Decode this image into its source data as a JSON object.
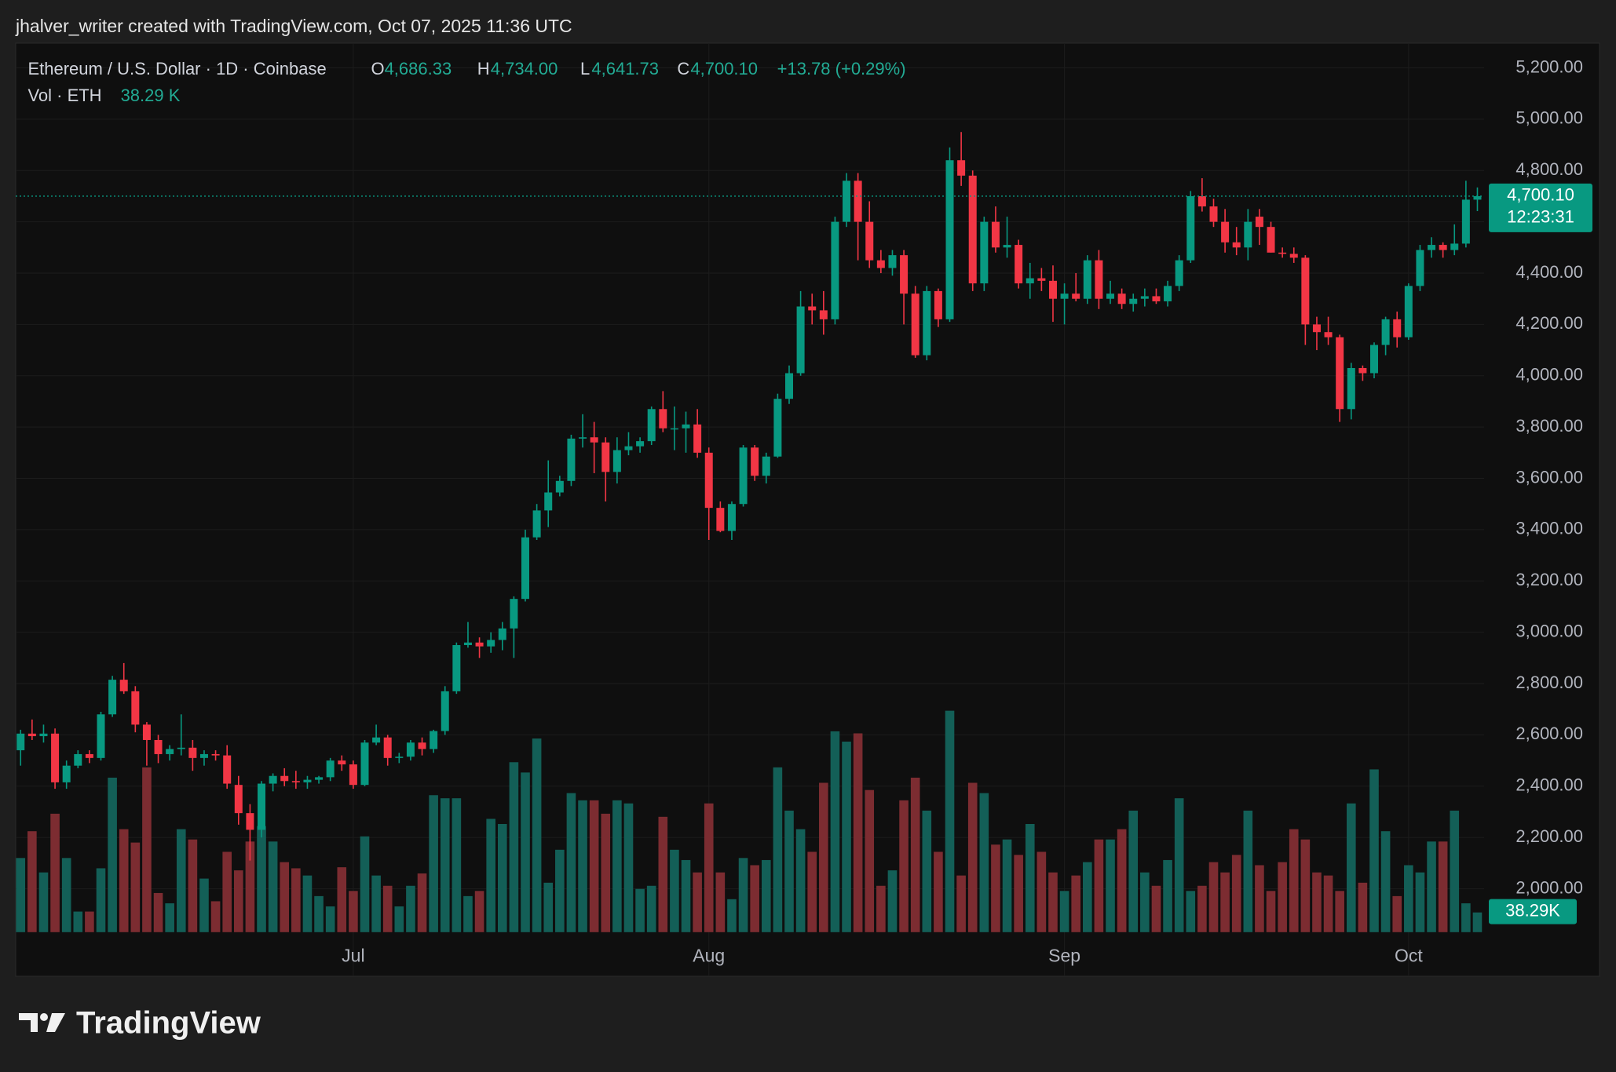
{
  "banner": "jhalver_writer created with TradingView.com, Oct 07, 2025 11:36 UTC",
  "brand": "TradingView",
  "chart_data": {
    "type": "candlestick",
    "legend": {
      "symbol": "Ethereum / U.S. Dollar · 1D · Coinbase",
      "open_key": "O",
      "open": "4,686.33",
      "high_key": "H",
      "high": "4,734.00",
      "low_key": "L",
      "low": "4,641.73",
      "close_key": "C",
      "close": "4,700.10",
      "change": "+13.78 (+0.29%)",
      "volume_key": "Vol · ETH",
      "volume": "38.29 K"
    },
    "last_price_label": "4,700.10",
    "countdown": "12:23:31",
    "volume_label": "38.29K",
    "up_color": "#089981",
    "down_color": "#f23645",
    "volume_up_color": "#135f57",
    "volume_down_color": "#7c2c31",
    "grid": true,
    "categories": [
      null,
      null,
      null,
      null,
      null,
      null,
      null,
      null,
      null,
      null,
      null,
      null,
      null,
      null,
      null,
      null,
      null,
      null,
      null,
      null,
      null,
      null,
      null,
      null,
      null,
      null,
      null,
      null,
      null,
      "Jul",
      null,
      null,
      null,
      null,
      null,
      null,
      null,
      null,
      null,
      null,
      null,
      null,
      null,
      null,
      null,
      null,
      null,
      null,
      null,
      null,
      null,
      null,
      null,
      null,
      null,
      null,
      null,
      null,
      null,
      null,
      "Aug",
      null,
      null,
      null,
      null,
      null,
      null,
      null,
      null,
      null,
      null,
      null,
      null,
      null,
      null,
      null,
      null,
      null,
      null,
      null,
      null,
      null,
      null,
      null,
      null,
      null,
      null,
      null,
      null,
      null,
      null,
      "Sep",
      null,
      null,
      null,
      null,
      null,
      null,
      null,
      null,
      null,
      null,
      null,
      null,
      null,
      null,
      null,
      null,
      null,
      null,
      null,
      null,
      null,
      null,
      null,
      null,
      null,
      null,
      null,
      null,
      null,
      "Oct",
      null,
      null,
      null,
      null,
      null,
      null
    ],
    "ohlc": [
      [
        2540,
        2620,
        2480,
        2605
      ],
      [
        2605,
        2660,
        2580,
        2595
      ],
      [
        2595,
        2640,
        2570,
        2605
      ],
      [
        2605,
        2625,
        2390,
        2415
      ],
      [
        2415,
        2500,
        2390,
        2480
      ],
      [
        2480,
        2540,
        2470,
        2525
      ],
      [
        2525,
        2540,
        2490,
        2510
      ],
      [
        2510,
        2690,
        2500,
        2680
      ],
      [
        2680,
        2830,
        2670,
        2815
      ],
      [
        2815,
        2880,
        2760,
        2770
      ],
      [
        2770,
        2790,
        2610,
        2640
      ],
      [
        2640,
        2650,
        2480,
        2580
      ],
      [
        2580,
        2600,
        2490,
        2525
      ],
      [
        2525,
        2560,
        2500,
        2545
      ],
      [
        2545,
        2680,
        2520,
        2550
      ],
      [
        2550,
        2580,
        2460,
        2510
      ],
      [
        2510,
        2540,
        2480,
        2525
      ],
      [
        2525,
        2540,
        2500,
        2520
      ],
      [
        2520,
        2560,
        2390,
        2410
      ],
      [
        2405,
        2440,
        2250,
        2295
      ],
      [
        2295,
        2330,
        2110,
        2230
      ],
      [
        2230,
        2420,
        2200,
        2410
      ],
      [
        2410,
        2450,
        2380,
        2440
      ],
      [
        2440,
        2470,
        2400,
        2420
      ],
      [
        2420,
        2460,
        2390,
        2415
      ],
      [
        2415,
        2440,
        2390,
        2425
      ],
      [
        2425,
        2440,
        2410,
        2435
      ],
      [
        2435,
        2510,
        2420,
        2500
      ],
      [
        2500,
        2520,
        2460,
        2485
      ],
      [
        2485,
        2500,
        2390,
        2405
      ],
      [
        2405,
        2580,
        2400,
        2570
      ],
      [
        2570,
        2640,
        2560,
        2590
      ],
      [
        2590,
        2600,
        2480,
        2510
      ],
      [
        2510,
        2530,
        2490,
        2515
      ],
      [
        2515,
        2580,
        2500,
        2570
      ],
      [
        2570,
        2590,
        2520,
        2545
      ],
      [
        2545,
        2620,
        2530,
        2615
      ],
      [
        2615,
        2790,
        2600,
        2770
      ],
      [
        2770,
        2960,
        2760,
        2950
      ],
      [
        2950,
        3040,
        2940,
        2960
      ],
      [
        2960,
        2980,
        2900,
        2945
      ],
      [
        2945,
        3000,
        2920,
        2970
      ],
      [
        2970,
        3040,
        2930,
        3015
      ],
      [
        3015,
        3140,
        2900,
        3130
      ],
      [
        3130,
        3400,
        3120,
        3370
      ],
      [
        3370,
        3500,
        3360,
        3475
      ],
      [
        3475,
        3670,
        3410,
        3545
      ],
      [
        3545,
        3610,
        3530,
        3590
      ],
      [
        3590,
        3770,
        3570,
        3755
      ],
      [
        3755,
        3850,
        3720,
        3760
      ],
      [
        3760,
        3820,
        3620,
        3740
      ],
      [
        3740,
        3760,
        3510,
        3625
      ],
      [
        3625,
        3760,
        3580,
        3710
      ],
      [
        3710,
        3780,
        3690,
        3725
      ],
      [
        3725,
        3760,
        3700,
        3745
      ],
      [
        3745,
        3880,
        3730,
        3870
      ],
      [
        3870,
        3940,
        3780,
        3795
      ],
      [
        3795,
        3880,
        3710,
        3795
      ],
      [
        3795,
        3860,
        3700,
        3810
      ],
      [
        3810,
        3870,
        3680,
        3700
      ],
      [
        3700,
        3720,
        3360,
        3485
      ],
      [
        3485,
        3510,
        3390,
        3395
      ],
      [
        3395,
        3510,
        3360,
        3500
      ],
      [
        3500,
        3730,
        3490,
        3720
      ],
      [
        3720,
        3730,
        3590,
        3610
      ],
      [
        3610,
        3700,
        3580,
        3685
      ],
      [
        3685,
        3930,
        3680,
        3910
      ],
      [
        3910,
        4040,
        3890,
        4010
      ],
      [
        4010,
        4330,
        4000,
        4270
      ],
      [
        4270,
        4320,
        4200,
        4255
      ],
      [
        4255,
        4330,
        4160,
        4220
      ],
      [
        4220,
        4620,
        4200,
        4600
      ],
      [
        4600,
        4790,
        4580,
        4760
      ],
      [
        4760,
        4790,
        4450,
        4600
      ],
      [
        4600,
        4680,
        4420,
        4450
      ],
      [
        4450,
        4490,
        4400,
        4420
      ],
      [
        4420,
        4490,
        4390,
        4470
      ],
      [
        4470,
        4490,
        4200,
        4320
      ],
      [
        4320,
        4350,
        4070,
        4080
      ],
      [
        4080,
        4350,
        4060,
        4330
      ],
      [
        4330,
        4340,
        4190,
        4220
      ],
      [
        4220,
        4890,
        4210,
        4840
      ],
      [
        4840,
        4950,
        4740,
        4780
      ],
      [
        4780,
        4800,
        4330,
        4360
      ],
      [
        4360,
        4620,
        4330,
        4600
      ],
      [
        4600,
        4660,
        4480,
        4500
      ],
      [
        4500,
        4620,
        4460,
        4510
      ],
      [
        4510,
        4530,
        4340,
        4360
      ],
      [
        4360,
        4440,
        4300,
        4380
      ],
      [
        4380,
        4420,
        4330,
        4370
      ],
      [
        4370,
        4430,
        4210,
        4300
      ],
      [
        4300,
        4360,
        4200,
        4320
      ],
      [
        4320,
        4400,
        4290,
        4300
      ],
      [
        4300,
        4470,
        4280,
        4450
      ],
      [
        4450,
        4490,
        4260,
        4300
      ],
      [
        4300,
        4370,
        4280,
        4320
      ],
      [
        4320,
        4340,
        4260,
        4280
      ],
      [
        4280,
        4320,
        4250,
        4300
      ],
      [
        4300,
        4340,
        4270,
        4310
      ],
      [
        4310,
        4340,
        4280,
        4290
      ],
      [
        4290,
        4370,
        4270,
        4350
      ],
      [
        4350,
        4470,
        4330,
        4450
      ],
      [
        4450,
        4720,
        4440,
        4700
      ],
      [
        4700,
        4770,
        4640,
        4660
      ],
      [
        4660,
        4690,
        4580,
        4600
      ],
      [
        4600,
        4650,
        4480,
        4520
      ],
      [
        4520,
        4580,
        4470,
        4500
      ],
      [
        4500,
        4650,
        4450,
        4600
      ],
      [
        4620,
        4650,
        4510,
        4580
      ],
      [
        4580,
        4600,
        4480,
        4480
      ],
      [
        4480,
        4500,
        4460,
        4475
      ],
      [
        4475,
        4500,
        4440,
        4460
      ],
      [
        4460,
        4470,
        4120,
        4200
      ],
      [
        4200,
        4230,
        4100,
        4170
      ],
      [
        4170,
        4230,
        4120,
        4150
      ],
      [
        4150,
        4160,
        3820,
        3870
      ],
      [
        3870,
        4050,
        3830,
        4030
      ],
      [
        4030,
        4040,
        3980,
        4010
      ],
      [
        4010,
        4130,
        3990,
        4120
      ],
      [
        4120,
        4230,
        4080,
        4220
      ],
      [
        4220,
        4250,
        4110,
        4150
      ],
      [
        4150,
        4360,
        4140,
        4350
      ],
      [
        4350,
        4510,
        4330,
        4490
      ],
      [
        4490,
        4540,
        4460,
        4510
      ],
      [
        4510,
        4520,
        4460,
        4490
      ],
      [
        4490,
        4590,
        4470,
        4515
      ],
      [
        4515,
        4760,
        4500,
        4686.33
      ],
      [
        4686.33,
        4734.0,
        4641.73,
        4700.1
      ]
    ],
    "volume": [
      144000,
      196000,
      116000,
      230000,
      144000,
      40000,
      40000,
      124000,
      300000,
      200000,
      174000,
      320000,
      76000,
      56000,
      200000,
      180000,
      104000,
      60000,
      156000,
      120000,
      176000,
      206000,
      176000,
      136000,
      124000,
      110000,
      70000,
      50000,
      126000,
      80000,
      186000,
      110000,
      90000,
      50000,
      90000,
      114000,
      266000,
      260000,
      260000,
      70000,
      80000,
      220000,
      210000,
      330000,
      310000,
      376000,
      96000,
      160000,
      270000,
      256000,
      256000,
      230000,
      256000,
      250000,
      84000,
      90000,
      224000,
      160000,
      140000,
      116000,
      250000,
      116000,
      64000,
      144000,
      130000,
      140000,
      320000,
      236000,
      200000,
      156000,
      290000,
      390000,
      370000,
      386000,
      276000,
      90000,
      120000,
      256000,
      300000,
      236000,
      156000,
      430000,
      110000,
      290000,
      270000,
      170000,
      180000,
      150000,
      210000,
      156000,
      116000,
      80000,
      110000,
      136000,
      180000,
      180000,
      200000,
      236000,
      116000,
      90000,
      140000,
      260000,
      80000,
      90000,
      136000,
      116000,
      150000,
      236000,
      130000,
      80000,
      136000,
      200000,
      180000,
      116000,
      110000,
      80000,
      250000,
      96000,
      316000,
      196000,
      70000,
      130000,
      116000,
      176000,
      176000,
      236000,
      56000,
      38290
    ],
    "ylim": [
      1831,
      5296
    ],
    "yticks": [
      {
        "value": 2000,
        "label": "2,000.00"
      },
      {
        "value": 2200,
        "label": "2,200.00"
      },
      {
        "value": 2400,
        "label": "2,400.00"
      },
      {
        "value": 2600,
        "label": "2,600.00"
      },
      {
        "value": 2800,
        "label": "2,800.00"
      },
      {
        "value": 3000,
        "label": "3,000.00"
      },
      {
        "value": 3200,
        "label": "3,200.00"
      },
      {
        "value": 3400,
        "label": "3,400.00"
      },
      {
        "value": 3600,
        "label": "3,600.00"
      },
      {
        "value": 3800,
        "label": "3,800.00"
      },
      {
        "value": 4000,
        "label": "4,000.00"
      },
      {
        "value": 4200,
        "label": "4,200.00"
      },
      {
        "value": 4400,
        "label": "4,400.00"
      },
      {
        "value": 4600,
        "label": "4,600.00"
      },
      {
        "value": 4800,
        "label": "4,800.00"
      },
      {
        "value": 5000,
        "label": "5,000.00"
      },
      {
        "value": 5200,
        "label": "5,200.00"
      }
    ]
  }
}
